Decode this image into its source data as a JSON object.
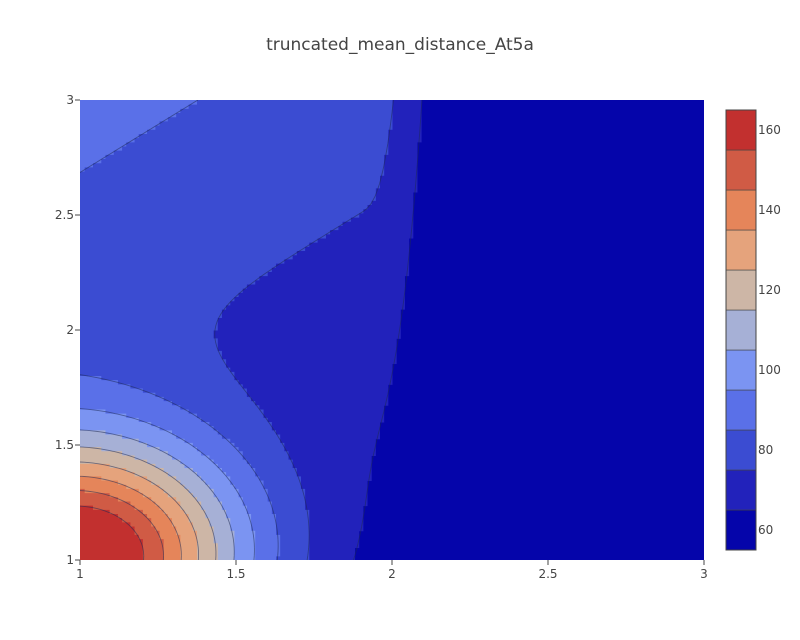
{
  "chart_data": {
    "type": "contour",
    "title": "truncated_mean_distance_At5a",
    "xlabel": "",
    "ylabel": "",
    "xlim": [
      1,
      3
    ],
    "ylim": [
      1,
      3
    ],
    "x_ticks": [
      "1",
      "1.5",
      "2",
      "2.5",
      "3"
    ],
    "y_ticks": [
      "1",
      "1.5",
      "2",
      "2.5",
      "3"
    ],
    "colorbar": {
      "range": [
        55,
        165
      ],
      "tick_values": [
        60,
        80,
        100,
        120,
        140,
        160
      ],
      "tick_labels": [
        "60",
        "80",
        "100",
        "120",
        "140",
        "160"
      ],
      "levels": [
        65,
        75,
        85,
        95,
        105,
        115,
        125,
        135,
        145,
        155
      ],
      "colors": [
        "#0505aa",
        "#2222bb",
        "#3b4cd2",
        "#5a70e8",
        "#7b94f2",
        "#a6b0d6",
        "#cdb6a6",
        "#e5a37c",
        "#e5855a",
        "#d05b45",
        "#c2302f",
        "#b2091f"
      ]
    },
    "grid": false,
    "legend": "colorbar-right"
  }
}
